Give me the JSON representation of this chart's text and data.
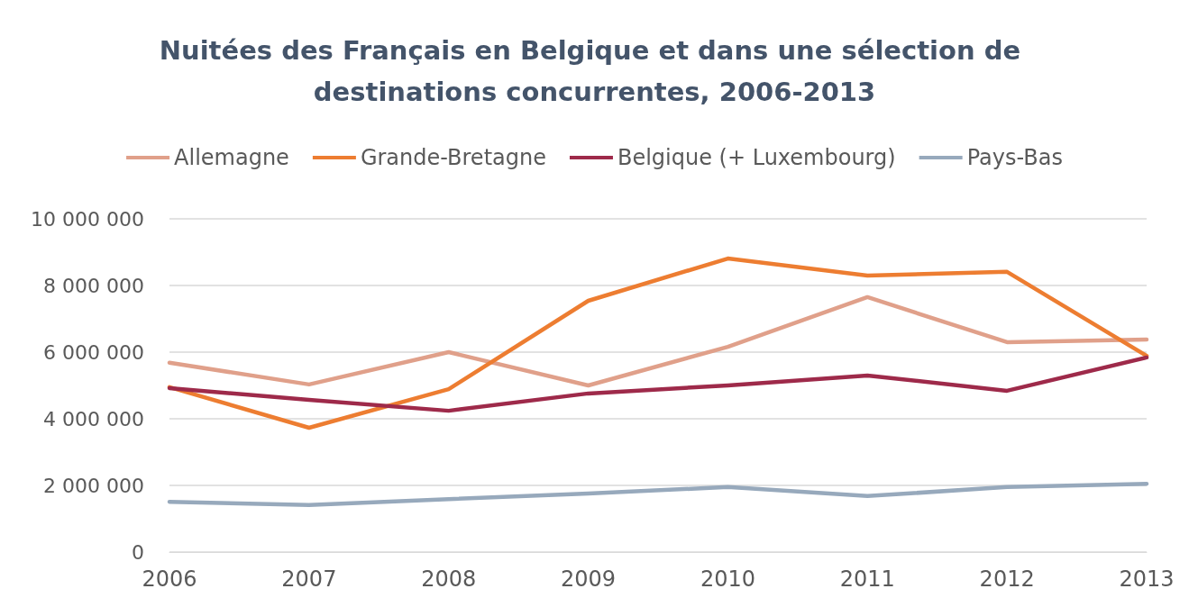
{
  "chart_data": {
    "type": "line",
    "title": "Nuitées des Français en Belgique et dans une sélection de destinations concurrentes, 2006-2013",
    "categories": [
      "2006",
      "2007",
      "2008",
      "2009",
      "2010",
      "2011",
      "2012",
      "2013"
    ],
    "series": [
      {
        "name": "Allemagne",
        "color": "#e0a08a",
        "values": [
          5680000,
          5030000,
          6000000,
          5000000,
          6160000,
          7650000,
          6300000,
          6380000
        ]
      },
      {
        "name": "Grande-Bretagne",
        "color": "#ed7d31",
        "values": [
          4950000,
          3730000,
          4890000,
          7540000,
          8810000,
          8300000,
          8410000,
          5890000
        ]
      },
      {
        "name": "Belgique (+ Luxembourg)",
        "color": "#9e2a4a",
        "values": [
          4920000,
          4570000,
          4240000,
          4760000,
          5000000,
          5300000,
          4840000,
          5840000
        ]
      },
      {
        "name": "Pays-Bas",
        "color": "#97a9bc",
        "values": [
          1510000,
          1410000,
          1590000,
          1760000,
          1950000,
          1680000,
          1950000,
          2050000
        ]
      }
    ],
    "ylim": [
      0,
      10000000
    ],
    "yticks": [
      0,
      {
        "value": 2000000,
        "label": "2 000 000"
      },
      {
        "value": 4000000,
        "label": "4 000 000"
      },
      {
        "value": 6000000,
        "label": "6 000 000"
      },
      {
        "value": 8000000,
        "label": "8 000 000"
      },
      {
        "value": 10000000,
        "label": "10 000 000"
      }
    ],
    "grid": "y",
    "legend": "top",
    "marker": "none",
    "line_style": "solid"
  }
}
